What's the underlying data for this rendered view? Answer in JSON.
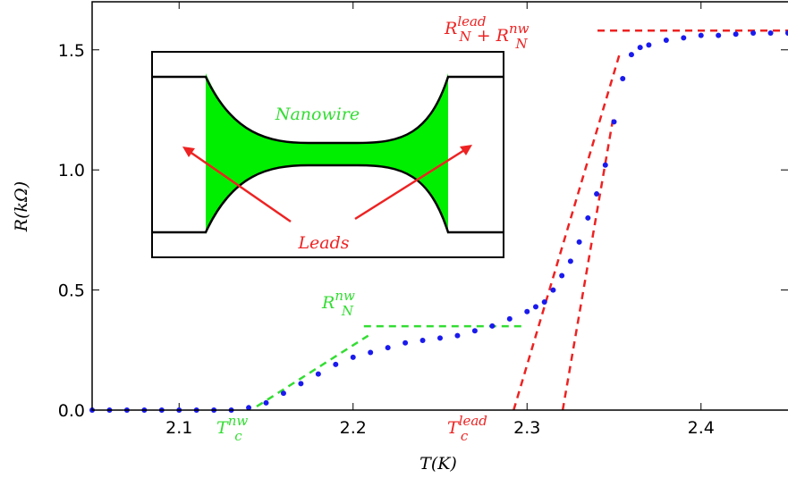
{
  "chart_data": {
    "type": "scatter",
    "x_label": "T(K)",
    "y_label": "R(kΩ)",
    "xlim": [
      2.05,
      2.45
    ],
    "ylim": [
      0,
      1.7
    ],
    "xticks": [
      2.1,
      2.2,
      2.3,
      2.4
    ],
    "yticks": [
      {
        "value": 0,
        "label": "0.0"
      },
      0.5,
      {
        "value": 1,
        "label": "1.0"
      },
      1.5
    ],
    "color": "#1a1aee",
    "x": [
      2.05,
      2.06,
      2.07,
      2.08,
      2.09,
      2.1,
      2.11,
      2.12,
      2.13,
      2.14,
      2.15,
      2.16,
      2.17,
      2.18,
      2.19,
      2.2,
      2.21,
      2.22,
      2.23,
      2.24,
      2.25,
      2.26,
      2.27,
      2.28,
      2.29,
      2.3,
      2.305,
      2.31,
      2.315,
      2.32,
      2.325,
      2.33,
      2.335,
      2.34,
      2.345,
      2.35,
      2.355,
      2.36,
      2.365,
      2.37,
      2.38,
      2.39,
      2.4,
      2.41,
      2.42,
      2.43,
      2.44,
      2.45
    ],
    "values": [
      0,
      0,
      0,
      0,
      0,
      0,
      0,
      0,
      0,
      0.01,
      0.03,
      0.07,
      0.11,
      0.15,
      0.19,
      0.22,
      0.24,
      0.26,
      0.28,
      0.29,
      0.3,
      0.31,
      0.33,
      0.35,
      0.38,
      0.41,
      0.43,
      0.45,
      0.5,
      0.56,
      0.62,
      0.7,
      0.8,
      0.9,
      1.02,
      1.2,
      1.38,
      1.48,
      1.51,
      1.52,
      1.54,
      1.55,
      1.56,
      1.56,
      1.565,
      1.57,
      1.57,
      1.57
    ],
    "fit_lines": [
      {
        "color": "#ee2222",
        "x": [
          2.3405,
          2.45
        ],
        "y": [
          1.58,
          1.58
        ]
      },
      {
        "color": "#ee2222",
        "x": [
          2.2923,
          2.3533
        ],
        "y": [
          0,
          1.485
        ]
      },
      {
        "color": "#ee2222",
        "x": [
          2.3205,
          2.3497
        ],
        "y": [
          0,
          1.225
        ]
      },
      {
        "color": "#33dd33",
        "x": [
          2.2062,
          2.2985
        ],
        "y": [
          0.349,
          0.349
        ]
      },
      {
        "color": "#33dd33",
        "x": [
          2.1446,
          2.2087
        ],
        "y": [
          0.015,
          0.31
        ]
      }
    ],
    "annotations": [
      {
        "color": "#ee2222",
        "parts": [
          {
            "text": "R",
            "sub": "N",
            "sup": "lead"
          },
          {
            "text": " + "
          },
          {
            "text": "R",
            "sub": "N",
            "sup": "nw"
          }
        ]
      },
      {
        "color": "#33dd33",
        "parts": [
          {
            "text": "R",
            "sub": "N",
            "sup": "nw"
          }
        ]
      },
      {
        "color": "#33dd33",
        "parts": [
          {
            "text": "T",
            "sub": "c",
            "sup": "nw"
          }
        ]
      },
      {
        "color": "#ee2222",
        "parts": [
          {
            "text": "T",
            "sub": "c",
            "sup": "lead"
          }
        ]
      }
    ],
    "inset_labels": [
      "Nanowire",
      "Leads"
    ]
  }
}
